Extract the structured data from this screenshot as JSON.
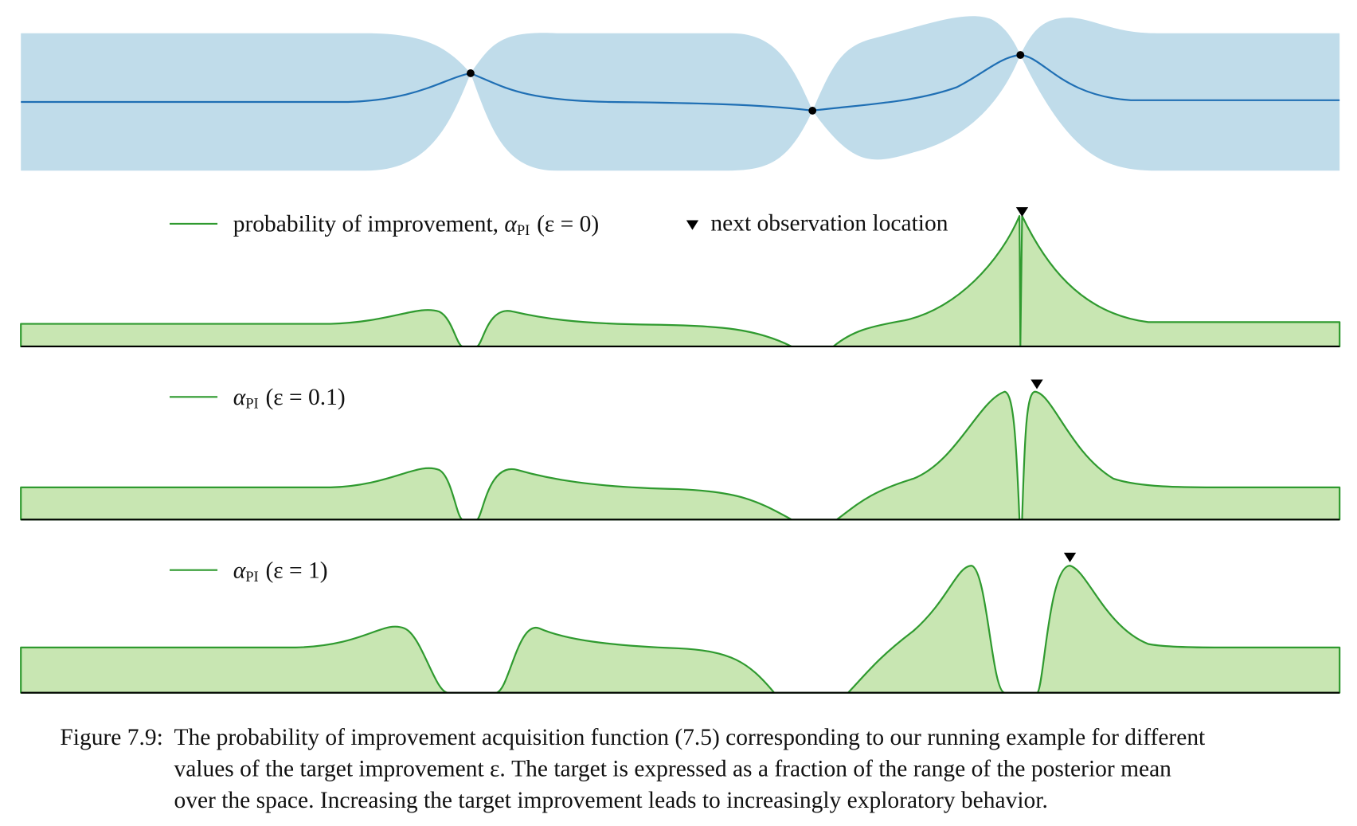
{
  "figure": {
    "panels": [
      {
        "legend": [
          {
            "prefix": "probability of improvement, ",
            "symbol": "α",
            "subscript": "PI",
            "condition": "(ε = 0)"
          },
          {
            "prefix": "next observation location"
          }
        ]
      },
      {
        "legend": [
          {
            "symbol": "α",
            "subscript": "PI",
            "condition": "(ε = 0.1)"
          }
        ]
      },
      {
        "legend": [
          {
            "symbol": "α",
            "subscript": "PI",
            "condition": "(ε = 1)"
          }
        ]
      }
    ],
    "caption": {
      "label": "Figure 7.9:",
      "lines": [
        "The probability of improvement acquisition function (7.5) corresponding to our running example for different",
        "values of the target improvement ε. The target is expressed as a fraction of the range of the posterior mean",
        "over the space. Increasing the target improvement leads to increasingly exploratory behavior."
      ]
    }
  }
}
